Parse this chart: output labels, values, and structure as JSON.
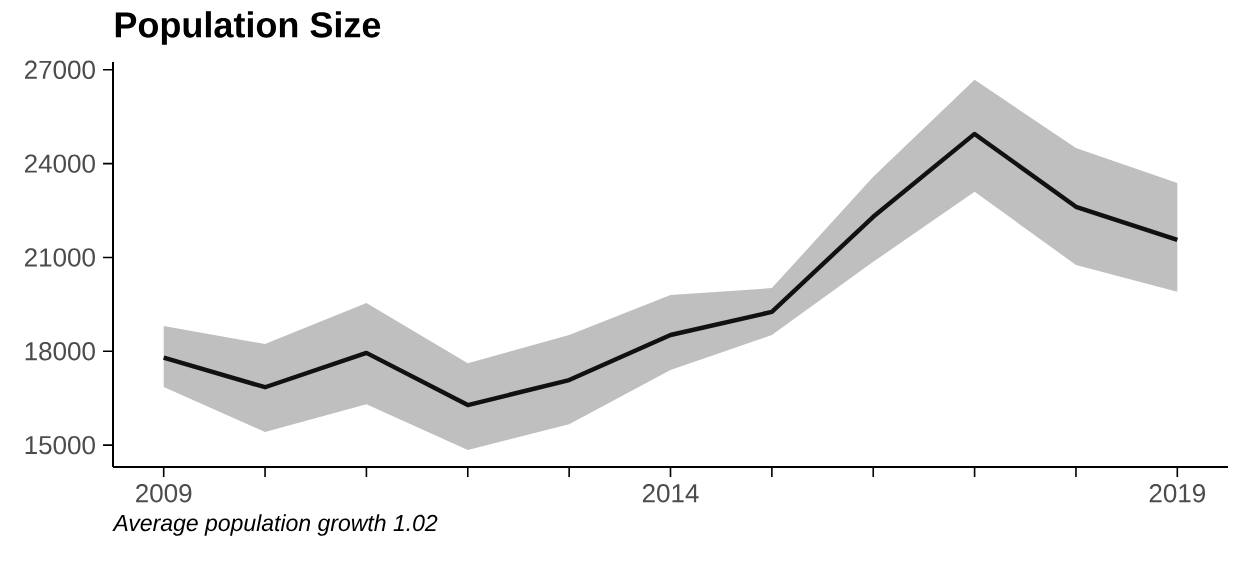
{
  "chart_data": {
    "type": "line",
    "title": "Population Size",
    "x": [
      2009,
      2010,
      2011,
      2012,
      2013,
      2014,
      2015,
      2016,
      2017,
      2018,
      2019
    ],
    "series": [
      {
        "color": "#111111",
        "values": [
          17800,
          16850,
          17950,
          16280,
          17080,
          18520,
          19260,
          22300,
          24950,
          22620,
          21560
        ],
        "lower": [
          16860,
          15420,
          16310,
          14840,
          15670,
          17400,
          18520,
          20860,
          23100,
          20760,
          19900
        ],
        "upper": [
          18810,
          18230,
          19540,
          17620,
          18520,
          19800,
          20020,
          23580,
          26680,
          24500,
          23380
        ]
      }
    ],
    "xlim": [
      2008.5,
      2019.5
    ],
    "ylim": [
      14300,
      27250
    ],
    "xticks": [
      2009,
      {
        "value": 2010,
        "label": null
      },
      {
        "value": 2011,
        "label": null
      },
      {
        "value": 2012,
        "label": null
      },
      {
        "value": 2013,
        "label": null
      },
      2014,
      {
        "value": 2015,
        "label": null
      },
      {
        "value": 2016,
        "label": null
      },
      {
        "value": 2017,
        "label": null
      },
      {
        "value": 2018,
        "label": null
      },
      2019
    ],
    "yticks": [
      15000,
      18000,
      21000,
      24000,
      27000
    ],
    "line_style": "solid",
    "annotations": [
      "Average population growth 1.02"
    ]
  }
}
